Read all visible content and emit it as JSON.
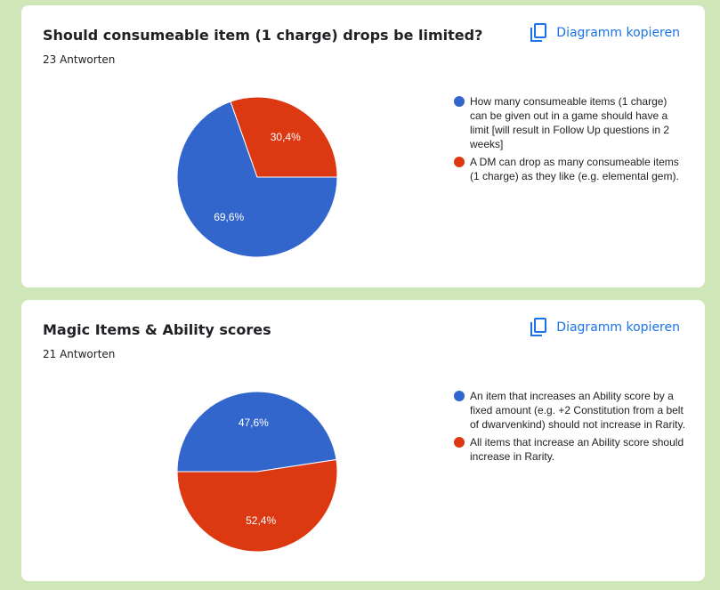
{
  "colors": {
    "blue": "#3366cc",
    "red": "#dc3912",
    "link": "#1a73e8"
  },
  "copy_icon": "copy-icon",
  "cards": [
    {
      "title": "Should consumeable item (1 charge) drops be limited?",
      "responses": "23 Antworten",
      "copy_label": "Diagramm kopieren",
      "chart_data": {
        "type": "pie",
        "slices": [
          {
            "label": "How many consumeable items (1 charge) can be given out in a game should have a limit [will result in Follow Up questions in 2 weeks]",
            "value": 69.6,
            "display": "69,6%",
            "color": "#3366cc"
          },
          {
            "label": "A DM can drop as many consumeable items (1 charge) as they like (e.g. elemental gem).",
            "value": 30.4,
            "display": "30,4%",
            "color": "#dc3912"
          }
        ],
        "legend": "right"
      }
    },
    {
      "title": "Magic Items & Ability scores",
      "responses": "21 Antworten",
      "copy_label": "Diagramm kopieren",
      "chart_data": {
        "type": "pie",
        "slices": [
          {
            "label": "An item that increases an Ability score by a fixed amount (e.g. +2 Constitution from a belt of dwarvenkind) should not increase in Rarity.",
            "value": 47.6,
            "display": "47,6%",
            "color": "#3366cc"
          },
          {
            "label": "All items that increase an Ability score should increase in Rarity.",
            "value": 52.4,
            "display": "52,4%",
            "color": "#dc3912"
          }
        ],
        "legend": "right"
      }
    }
  ]
}
